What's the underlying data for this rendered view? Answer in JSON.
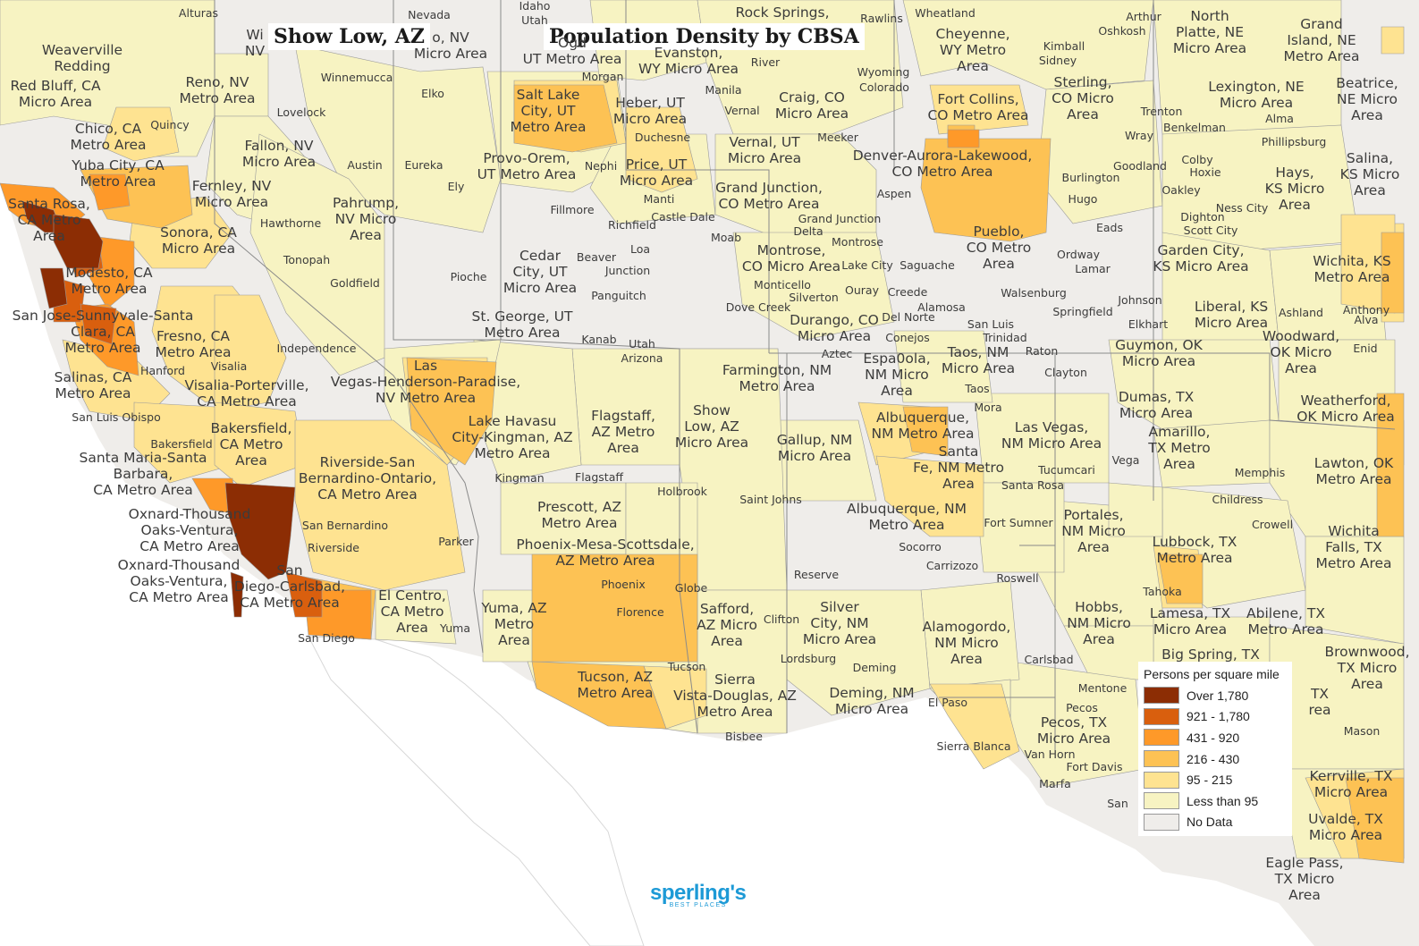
{
  "title": {
    "place": "Show Low, AZ",
    "heading": "Population Density by CBSA"
  },
  "legend": {
    "title": "Persons per square mile",
    "items": [
      {
        "label": "Over 1,780",
        "color": "#8c2d04"
      },
      {
        "label": "921 - 1,780",
        "color": "#d95f0e"
      },
      {
        "label": "431 - 920",
        "color": "#fe9929"
      },
      {
        "label": "216 - 430",
        "color": "#fdc254"
      },
      {
        "label": "95 - 215",
        "color": "#fee391"
      },
      {
        "label": "Less than 95",
        "color": "#f7f3c2"
      },
      {
        "label": "No Data",
        "color": "#efedea"
      }
    ]
  },
  "colors": {
    "ocean": "#ffffff",
    "land_no_data": "#efedea",
    "boundary": "#9a9a9a",
    "text": "#3c3c3c"
  },
  "logo": {
    "brand": "sperling's",
    "tagline": "BEST PLACES"
  },
  "cbsa_labels": [
    "Red Bluff, CA\nMicro Area",
    "Reno, NV\nMetro Area",
    "Chico, CA\nMetro Area",
    "Yuba City, CA\nMetro Area",
    "Fallon, NV\nMicro Area",
    "Fernley, NV\nMicro Area",
    "Santa Rosa,\nCA Metro\nArea",
    "Sonora, CA\nMicro Area",
    "Pahrump,\nNV Micro\nArea",
    "Modesto, CA\nMetro Area",
    "San Jose-Sunnyvale-Santa\nClara, CA\nMetro Area",
    "Fresno, CA\nMetro Area",
    "Salinas, CA\nMetro Area",
    "Visalia-Porterville,\nCA Metro Area",
    "Bakersfield,\nCA Metro\nArea",
    "Santa Maria-Santa\nBarbara,\nCA Metro Area",
    "Oxnard-Thousand\nOaks-Ventura,\nCA Metro Area",
    "Oxnard-Thousand\nOaks-Ventura,\nCA Metro Area",
    "Riverside-San\nBernardino-Ontario,\nCA Metro Area",
    "San\nDiego-Carlsbad,\nCA Metro Area",
    "El Centro,\nCA Metro\nArea",
    "Las\nVegas-Henderson-Paradise,\nNV Metro Area",
    "Lake Havasu\nCity-Kingman, AZ\nMetro Area",
    "Flagstaff,\nAZ Metro\nArea",
    "Show\nLow, AZ\nMicro Area",
    "Prescott, AZ\nMetro Area",
    "Phoenix-Mesa-Scottsdale,\nAZ Metro Area",
    "Yuma, AZ\nMetro\nArea",
    "Tucson, AZ\nMetro Area",
    "Safford,\nAZ Micro\nArea",
    "Sierra\nVista-Douglas, AZ\nMetro Area",
    "Salt Lake\nCity, UT\nMetro Area",
    "Heber, UT\nMicro Area",
    "Provo-Orem,\nUT Metro Area",
    "Price, UT\nMicro Area",
    "Cedar\nCity, UT\nMicro Area",
    "St. George, UT\nMetro Area",
    "Ogd\nUT Metro Area",
    "Evanston,\nWY Micro Area",
    "Rock Springs,",
    "Cheyenne,\nWY Metro\nArea",
    "Craig, CO\nMicro Area",
    "Vernal, UT\nMicro Area",
    "Grand Junction,\nCO Metro Area",
    "Montrose,\nCO Micro Area",
    "Durango, CO\nMicro Area",
    "Farmington, NM\nMetro Area",
    "Gallup, NM\nMicro Area",
    "Fort Collins,\nCO Metro Area",
    "Denver-Aurora-Lakewood,\nCO Metro Area",
    "Pueblo,\nCO Metro\nArea",
    "Sterling,\nCO Micro\nArea",
    "Espa0ola,\nNM Micro\nArea",
    "Taos, NM\nMicro Area",
    "Albuquerque,\nNM Metro Area",
    "Santa\nFe, NM Metro\nArea",
    "Albuquerque, NM\nMetro Area",
    "Las Vegas,\nNM Micro Area",
    "Silver\nCity, NM\nMicro Area",
    "Deming, NM\nMicro Area",
    "Alamogordo,\nNM Micro\nArea",
    "Portales,\nNM Micro\nArea",
    "Hobbs,\nNM Micro\nArea",
    "Pecos, TX\nMicro Area",
    "North\nPlatte, NE\nMicro Area",
    "Grand\nIsland, NE\nMetro Area",
    "Lexington, NE\nMicro Area",
    "Beatrice,\nNE Micro\nArea",
    "Hays,\nKS Micro\nArea",
    "Salina,\nKS Micro\nArea",
    "Garden City,\nKS Micro Area",
    "Wichita, KS\nMetro Area",
    "Liberal, KS\nMicro Area",
    "Guymon, OK\nMicro Area",
    "Woodward,\nOK Micro\nArea",
    "Weatherford,\nOK Micro Area",
    "Dumas, TX\nMicro Area",
    "Amarillo,\nTX Metro\nArea",
    "Lawton, OK\nMetro Area",
    "Wichita\nFalls, TX\nMetro Area",
    "Lubbock, TX\nMetro Area",
    "Lamesa, TX\nMicro Area",
    "Abilene, TX\nMetro Area",
    "Big Spring, TX",
    "Brownwood,\nTX Micro\nArea",
    "Kerrville, TX\nMicro Area",
    "Uvalde, TX\nMicro Area",
    "Eagle Pass,\nTX Micro\nArea",
    "Weaverville\nRedding",
    "o, NV\nMicro Area",
    "Wi\nNV",
    "TX\nrea"
  ],
  "city_labels": [
    "Alturas",
    "Nevada",
    "Idaho",
    "Utah",
    "Rawlins",
    "Wheatland",
    "Arthur",
    "Oshkosh",
    "Winnemucca",
    "Elko",
    "Morgan",
    "River",
    "Wyoming",
    "Colorado",
    "Kimball",
    "Sidney",
    "Quincy",
    "Lovelock",
    "Manila",
    "Vernal",
    "Trenton",
    "Alma",
    "Wray",
    "Benkelman",
    "Phillipsburg",
    "Duchesne",
    "Meeker",
    "Austin",
    "Eureka",
    "Nephi",
    "Ely",
    "Colby",
    "Hoxie",
    "Oakley",
    "Goodland",
    "Burlington",
    "Hugo",
    "Aspen",
    "Ness City",
    "Dighton",
    "Scott City",
    "Hawthorne",
    "Fillmore",
    "Manti",
    "Castle Dale",
    "Richfield",
    "Eads",
    "Grand Junction",
    "Delta",
    "Tonopah",
    "Moab",
    "Loa",
    "Beaver",
    "Junction",
    "Montrose",
    "Lake City",
    "Ordway",
    "Lamar",
    "Goldfield",
    "Pioche",
    "Panguitch",
    "Saguache",
    "Ouray",
    "Silverton",
    "Creede",
    "Monticello",
    "Dove Creek",
    "Alamosa",
    "Walsenburg",
    "Johnson",
    "Ashland",
    "Alva",
    "Anthony",
    "Del Norte",
    "Springfield",
    "Elkhart",
    "San Luis",
    "Trinidad",
    "Conejos",
    "Kanab",
    "Utah",
    "Arizona",
    "Aztec",
    "Raton",
    "Clayton",
    "Taos",
    "Independence",
    "Hanford",
    "Visalia",
    "Mora",
    "Enid",
    "San Luis Obispo",
    "Bakersfield",
    "Kingman",
    "Flagstaff",
    "Holbrook",
    "Saint Johns",
    "Tucumcari",
    "Santa Rosa",
    "Vega",
    "Memphis",
    "Childress",
    "Crowell",
    "Fort Sumner",
    "San Bernardino",
    "Riverside",
    "Parker",
    "Socorro",
    "Reserve",
    "Carrizozo",
    "Roswell",
    "Tahoka",
    "Phoenix",
    "Globe",
    "Florence",
    "Clifton",
    "Yuma",
    "San Diego",
    "Tucson",
    "Lordsburg",
    "Deming",
    "Carlsbad",
    "Mentone",
    "Pecos",
    "Mason",
    "Bisbee",
    "El Paso",
    "Van Horn",
    "Fort Davis",
    "Marfa",
    "Sierra Blanca",
    "San"
  ]
}
